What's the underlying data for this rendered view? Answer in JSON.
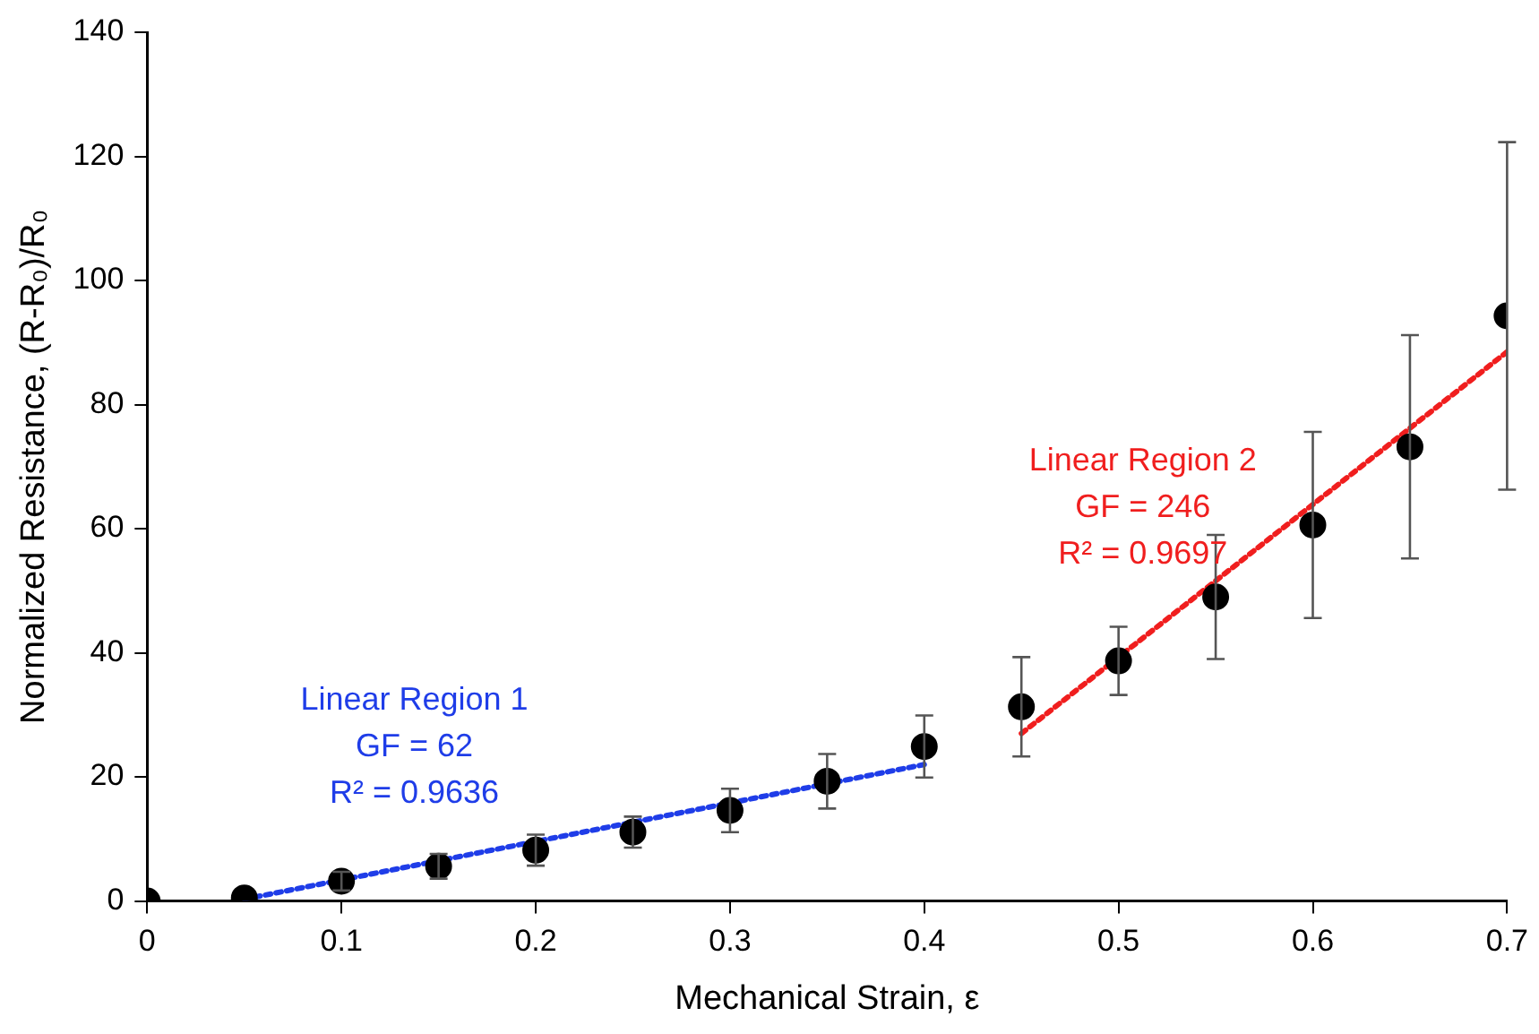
{
  "chart_data": {
    "type": "scatter",
    "xlabel": "Mechanical Strain, ε",
    "ylabel": "Normalized Resistance, (R-R₀)/R₀",
    "xlim": [
      0,
      0.7
    ],
    "xticks": [
      0,
      0.1,
      0.2,
      0.3,
      0.4,
      0.5,
      0.6,
      0.7
    ],
    "ylim": [
      0,
      140
    ],
    "yticks": [
      0,
      20,
      40,
      60,
      80,
      100,
      120,
      140
    ],
    "grid": false,
    "legend": false,
    "series": [
      {
        "marker": "circle",
        "color": "#000000",
        "x": [
          0,
          0.05,
          0.1,
          0.15,
          0.2,
          0.25,
          0.3,
          0.35,
          0.4,
          0.45,
          0.5,
          0.55,
          0.6,
          0.65,
          0.7
        ],
        "values": [
          0,
          0.5,
          3.2,
          5.6,
          8.2,
          11.1,
          14.6,
          19.3,
          24.9,
          31.3,
          38.7,
          49,
          60.6,
          73.2,
          94.3
        ],
        "errors": [
          null,
          null,
          1.5,
          2,
          2.5,
          2.5,
          3.5,
          4.4,
          5,
          8,
          5.5,
          10,
          15,
          18,
          28
        ]
      },
      {
        "type": "line",
        "name": "Linear Region 1",
        "marker": "none",
        "line_style": "dotted",
        "color": "#1f3de8",
        "x": [
          0.05,
          0.4
        ],
        "values": [
          0.3,
          22
        ]
      },
      {
        "type": "line",
        "name": "Linear Region 2",
        "marker": "none",
        "line_style": "dotted",
        "color": "#f01e1e",
        "x": [
          0.45,
          0.7
        ],
        "values": [
          27,
          88.5
        ]
      }
    ],
    "annotations": [
      "GF = 62",
      "R² = 0.9636",
      "GF = 246",
      "R² = 0.9697"
    ]
  }
}
